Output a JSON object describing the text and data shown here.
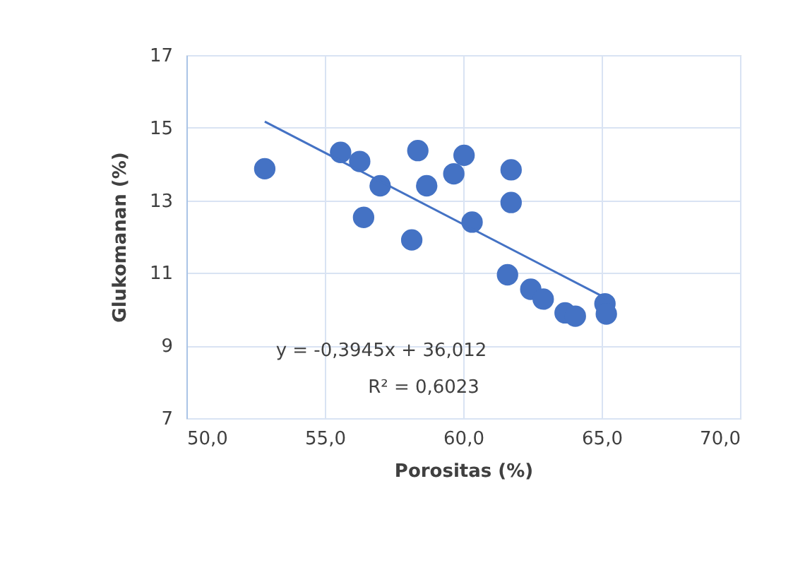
{
  "chart_data": {
    "type": "scatter",
    "xlabel": "Porositas (%)",
    "ylabel": "Glukomanan (%)",
    "xlim": [
      50,
      70
    ],
    "xticks": [
      {
        "value": 50,
        "label": "50,0"
      },
      {
        "value": 55,
        "label": "55,0"
      },
      {
        "value": 60,
        "label": "60,0"
      },
      {
        "value": 65,
        "label": "65,0"
      },
      {
        "value": 70,
        "label": "70,0"
      }
    ],
    "ylim": [
      7,
      17
    ],
    "yticks": [
      7,
      9,
      11,
      13,
      15,
      17
    ],
    "grid": true,
    "marker": "circle",
    "series": [
      {
        "color": "#4472c4",
        "x": [
          52.83,
          55.57,
          56.26,
          57.0,
          56.4,
          58.36,
          58.68,
          58.14,
          59.66,
          60.03,
          60.32,
          61.73,
          61.73,
          61.6,
          62.44,
          62.89,
          63.68,
          64.05,
          65.12,
          65.17
        ],
        "values": [
          13.87,
          14.32,
          14.07,
          13.4,
          12.53,
          14.37,
          13.4,
          11.91,
          13.73,
          14.24,
          12.4,
          13.84,
          12.94,
          10.95,
          10.55,
          10.28,
          9.9,
          9.81,
          10.15,
          9.87
        ]
      },
      {
        "type": "line",
        "color": "#4472c4",
        "x": [
          52.83,
          65.17
        ],
        "values": [
          15.17,
          10.3
        ],
        "marker": "none"
      }
    ],
    "annotations": [
      "y = -0,3945x + 36,012",
      "R² = 0,6023"
    ]
  }
}
